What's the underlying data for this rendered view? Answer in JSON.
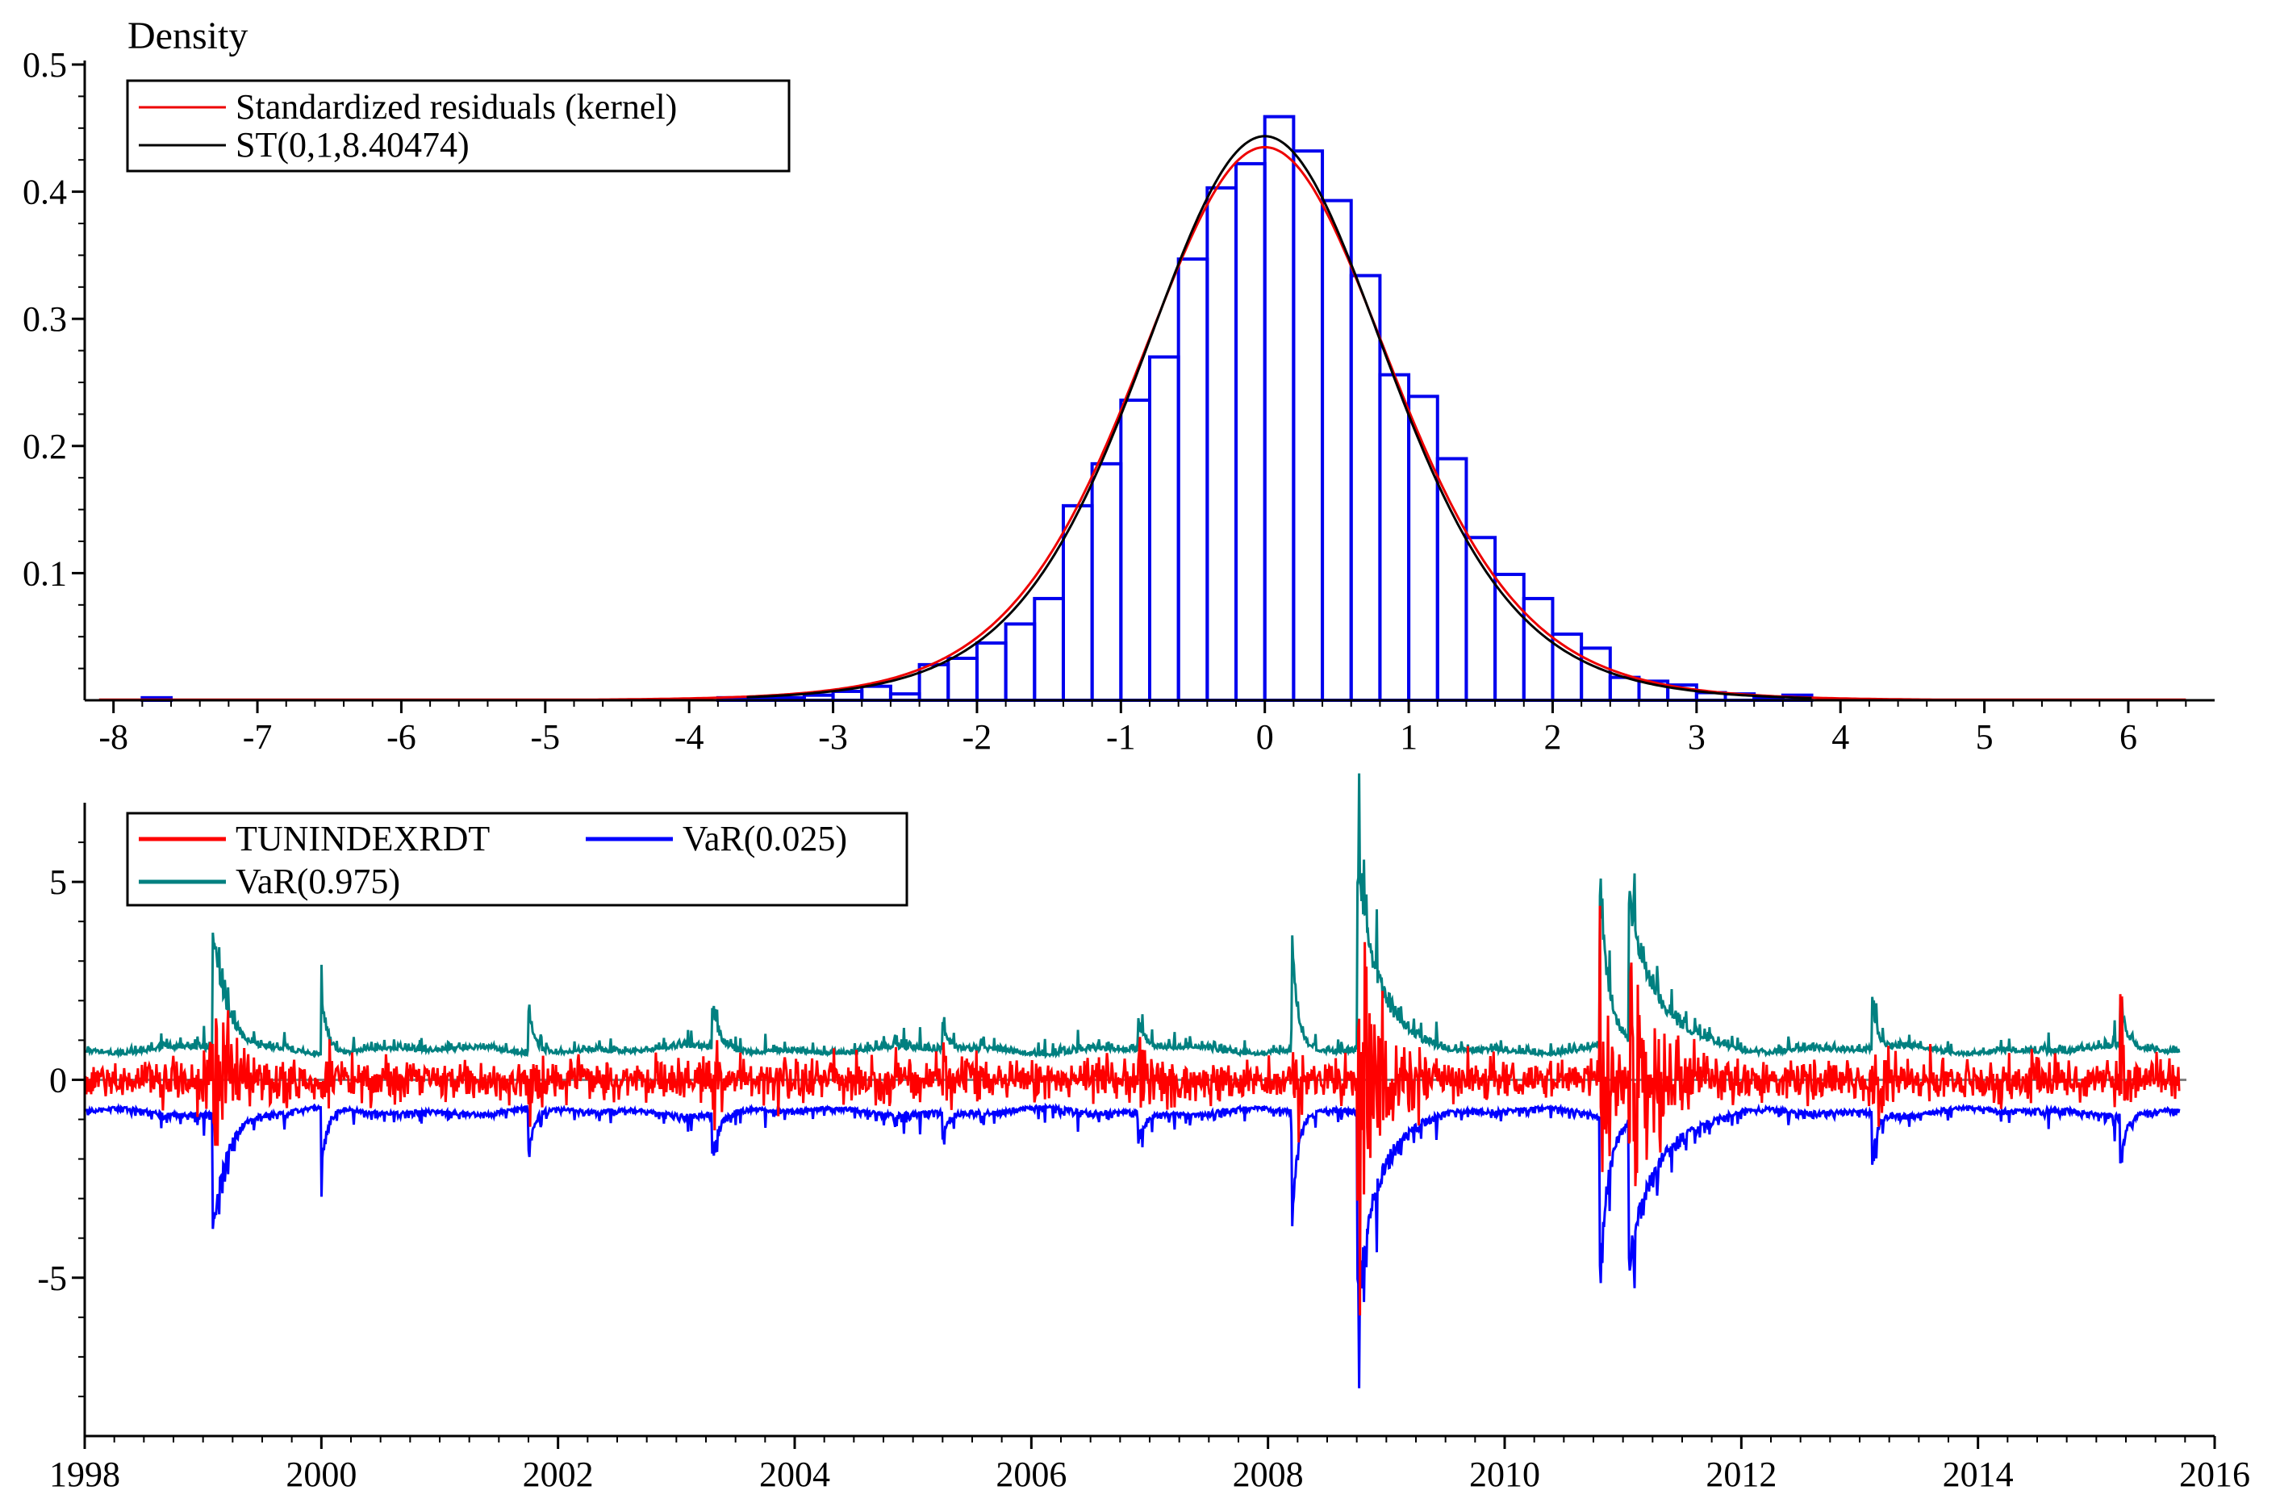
{
  "chart_data": [
    {
      "type": "bar",
      "ylabel": "Density",
      "xlim": [
        -8.2,
        6.6
      ],
      "ylim": [
        0,
        0.5
      ],
      "xticks": [
        -8,
        -7,
        -6,
        -5,
        -4,
        -3,
        -2,
        -1,
        0,
        1,
        2,
        3,
        4,
        5,
        6
      ],
      "yticks": [
        0.1,
        0.2,
        0.3,
        0.4,
        0.5
      ],
      "grid": false,
      "legend_position": "top-left",
      "histogram": {
        "color": "#0000ee",
        "bins": [
          {
            "x0": -3.8,
            "x1": -3.6,
            "y": 0.002
          },
          {
            "x0": -3.6,
            "x1": -3.4,
            "y": 0.002
          },
          {
            "x0": -3.4,
            "x1": -3.2,
            "y": 0.002
          },
          {
            "x0": -3.2,
            "x1": -3.0,
            "y": 0.004
          },
          {
            "x0": -3.0,
            "x1": -2.8,
            "y": 0.007
          },
          {
            "x0": -2.8,
            "x1": -2.6,
            "y": 0.011
          },
          {
            "x0": -2.6,
            "x1": -2.4,
            "y": 0.005
          },
          {
            "x0": -2.4,
            "x1": -2.2,
            "y": 0.028
          },
          {
            "x0": -2.2,
            "x1": -2.0,
            "y": 0.033
          },
          {
            "x0": -2.0,
            "x1": -1.8,
            "y": 0.045
          },
          {
            "x0": -1.8,
            "x1": -1.6,
            "y": 0.06
          },
          {
            "x0": -1.6,
            "x1": -1.4,
            "y": 0.08
          },
          {
            "x0": -1.4,
            "x1": -1.2,
            "y": 0.153
          },
          {
            "x0": -1.2,
            "x1": -1.0,
            "y": 0.186
          },
          {
            "x0": -1.0,
            "x1": -0.8,
            "y": 0.236
          },
          {
            "x0": -0.8,
            "x1": -0.6,
            "y": 0.27
          },
          {
            "x0": -0.6,
            "x1": -0.4,
            "y": 0.347
          },
          {
            "x0": -0.4,
            "x1": -0.2,
            "y": 0.403
          },
          {
            "x0": -0.2,
            "x1": 0.0,
            "y": 0.422
          },
          {
            "x0": 0.0,
            "x1": 0.2,
            "y": 0.459
          },
          {
            "x0": 0.2,
            "x1": 0.4,
            "y": 0.432
          },
          {
            "x0": 0.4,
            "x1": 0.6,
            "y": 0.393
          },
          {
            "x0": 0.6,
            "x1": 0.8,
            "y": 0.334
          },
          {
            "x0": 0.8,
            "x1": 1.0,
            "y": 0.256
          },
          {
            "x0": 1.0,
            "x1": 1.2,
            "y": 0.239
          },
          {
            "x0": 1.2,
            "x1": 1.4,
            "y": 0.19
          },
          {
            "x0": 1.4,
            "x1": 1.6,
            "y": 0.128
          },
          {
            "x0": 1.6,
            "x1": 1.8,
            "y": 0.099
          },
          {
            "x0": 1.8,
            "x1": 2.0,
            "y": 0.08
          },
          {
            "x0": 2.0,
            "x1": 2.2,
            "y": 0.052
          },
          {
            "x0": 2.2,
            "x1": 2.4,
            "y": 0.041
          },
          {
            "x0": 2.4,
            "x1": 2.6,
            "y": 0.018
          },
          {
            "x0": 2.6,
            "x1": 2.8,
            "y": 0.015
          },
          {
            "x0": 2.8,
            "x1": 3.0,
            "y": 0.012
          },
          {
            "x0": 3.0,
            "x1": 3.2,
            "y": 0.006
          },
          {
            "x0": 3.2,
            "x1": 3.4,
            "y": 0.005
          },
          {
            "x0": 3.4,
            "x1": 3.6,
            "y": 0.002
          },
          {
            "x0": 3.6,
            "x1": 3.8,
            "y": 0.004
          },
          {
            "x0": -7.8,
            "x1": -7.6,
            "y": 0.002
          }
        ]
      },
      "series": [
        {
          "name": "Standardized residuals (kernel)",
          "color": "#ee0000",
          "kind": "kernel",
          "peak": 0.435,
          "df": 8.40474,
          "scale": 1.03,
          "x_range": [
            -8.1,
            6.4
          ]
        },
        {
          "name": "ST(0,1,8.40474)",
          "color": "#000000",
          "kind": "student_t",
          "mean": 0,
          "sd": 1,
          "df": 8.40474,
          "x_range": [
            -3.6,
            3.8
          ]
        }
      ]
    },
    {
      "type": "line",
      "xlim": [
        1998,
        2016
      ],
      "ylim": [
        -9,
        7
      ],
      "xticks": [
        1998,
        2000,
        2002,
        2004,
        2006,
        2008,
        2010,
        2012,
        2014,
        2016
      ],
      "yticks": [
        -5,
        0,
        5
      ],
      "x_end": 2015.7,
      "reference_line": {
        "y": 0,
        "color": "#808080"
      },
      "grid": false,
      "legend_position": "top-left",
      "series": [
        {
          "name": "TUNINDEXRDT",
          "color": "#ff0000"
        },
        {
          "name": "VaR(0.025)",
          "color": "#0000ff"
        },
        {
          "name": "VaR(0.975)",
          "color": "#008080"
        }
      ],
      "volatility_events": [
        {
          "year": 1999.08,
          "level": 2.6,
          "decay": 0.12
        },
        {
          "year": 2000.0,
          "level": 1.3,
          "decay": 0.05
        },
        {
          "year": 2001.75,
          "level": 1.0,
          "decay": 0.05
        },
        {
          "year": 2003.3,
          "level": 1.0,
          "decay": 0.06
        },
        {
          "year": 2005.25,
          "level": 0.6,
          "decay": 0.05
        },
        {
          "year": 2006.9,
          "level": 0.6,
          "decay": 0.06
        },
        {
          "year": 2008.2,
          "level": 2.5,
          "decay": 0.05
        },
        {
          "year": 2008.75,
          "level": 4.0,
          "decay": 0.18
        },
        {
          "year": 2010.8,
          "level": 3.5,
          "decay": 0.08
        },
        {
          "year": 2011.05,
          "level": 3.0,
          "decay": 0.25
        },
        {
          "year": 2013.1,
          "level": 1.3,
          "decay": 0.04
        },
        {
          "year": 2015.2,
          "level": 1.0,
          "decay": 0.05
        }
      ]
    }
  ]
}
